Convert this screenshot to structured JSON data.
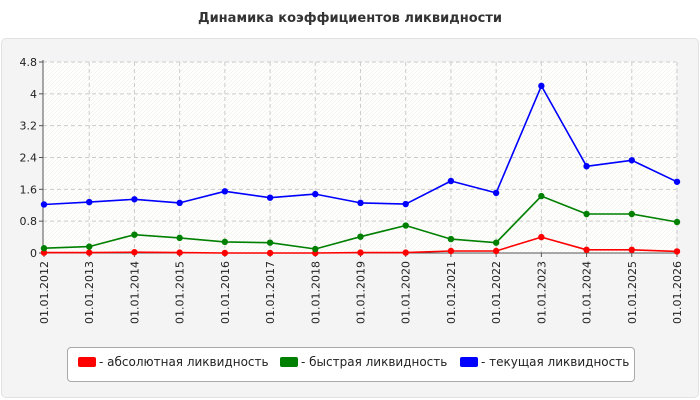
{
  "chart_data": {
    "type": "line",
    "title": "Динамика коэффициентов ликвидности",
    "categories": [
      "01.01.2012",
      "01.01.2013",
      "01.01.2014",
      "01.01.2015",
      "01.01.2016",
      "01.01.2017",
      "01.01.2018",
      "01.01.2019",
      "01.01.2020",
      "01.01.2021",
      "01.01.2022",
      "01.01.2023",
      "01.01.2024",
      "01.01.2025",
      "01.01.2026"
    ],
    "yticks": [
      "0",
      "0.8",
      "1.6",
      "2.4",
      "3.2",
      "4",
      "4.8"
    ],
    "ylim": [
      0,
      4.8
    ],
    "grid": true,
    "legend_position": "bottom",
    "series": [
      {
        "name": "- абсолютная ликвидность",
        "color": "#ff0000",
        "values": [
          0.01,
          0.01,
          0.02,
          0.01,
          0.0,
          0.0,
          0.0,
          0.01,
          0.01,
          0.05,
          0.05,
          0.4,
          0.08,
          0.08,
          0.04
        ]
      },
      {
        "name": "- быстрая ликвидность",
        "color": "#008000",
        "values": [
          0.12,
          0.16,
          0.46,
          0.38,
          0.28,
          0.26,
          0.1,
          0.41,
          0.69,
          0.35,
          0.26,
          1.43,
          0.98,
          0.98,
          0.78
        ]
      },
      {
        "name": "- текущая ликвидность",
        "color": "#0000ff",
        "values": [
          1.22,
          1.28,
          1.35,
          1.26,
          1.55,
          1.39,
          1.48,
          1.26,
          1.23,
          1.81,
          1.51,
          4.2,
          2.18,
          2.33,
          1.79
        ]
      }
    ]
  }
}
